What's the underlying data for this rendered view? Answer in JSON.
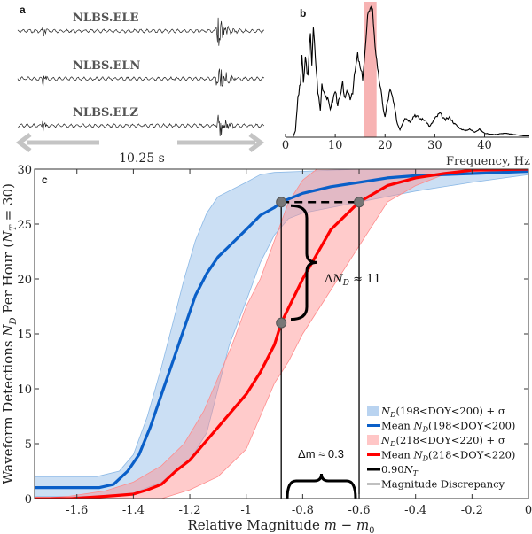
{
  "panel_a": {
    "label": "a",
    "stations": [
      "NLBS.ELE",
      "NLBS.ELN",
      "NLBS.ELZ"
    ],
    "duration_label": "10.25 s"
  },
  "panel_b": {
    "label": "b",
    "xlabel": "Frequency, Hz"
  },
  "panel_c": {
    "label": "c",
    "ylabel_parts": [
      "Waveform Detections ",
      "N",
      "D",
      " Per Hour (",
      "N",
      "T",
      " = 30)"
    ],
    "xlabel_parts": [
      "Relative Magnitude ",
      "m",
      " − ",
      "m",
      "0"
    ],
    "annotation_dn": {
      "delta": "Δ",
      "var": "N",
      "sub": "D",
      "rest": " ≈ 11"
    },
    "annotation_dm": "Δm ≈ 0.3",
    "legend": [
      {
        "type": "patch",
        "color": "#b9d3f0",
        "var": "N",
        "sub": "D",
        "pre": "",
        "rest": "(198<DOY<200) + σ"
      },
      {
        "type": "line",
        "color": "#0a5fc8",
        "var": "N",
        "sub": "D",
        "pre": "Mean ",
        "rest": "(198<DOY<200)"
      },
      {
        "type": "patch",
        "color": "#ffc6c6",
        "var": "N",
        "sub": "D",
        "pre": "",
        "rest": "(218<DOY<220) + σ"
      },
      {
        "type": "line",
        "color": "#ff0000",
        "var": "N",
        "sub": "D",
        "pre": "Mean ",
        "rest": "(218<DOY<220)"
      },
      {
        "type": "line",
        "color": "#000000",
        "var": "N",
        "sub": "T",
        "pre": "0.90",
        "rest": ""
      },
      {
        "type": "thinline",
        "color": "#000000",
        "var": "",
        "sub": "",
        "pre": "Magnitude Discrepancy",
        "rest": ""
      }
    ]
  },
  "chart_data": [
    {
      "type": "line",
      "panel": "b",
      "xlabel": "Frequency, Hz",
      "xlim": [
        0,
        49
      ],
      "xticks": [
        0,
        10,
        20,
        30,
        40
      ],
      "y_units": "relative amplitude (unlabeled)",
      "highlight_band": [
        15.8,
        18.3
      ],
      "highlight_color": "#f7b3b3",
      "x": [
        0,
        1.5,
        2,
        2.5,
        3,
        3.3,
        3.6,
        4,
        4.5,
        5,
        5.3,
        5.6,
        6,
        6.5,
        7,
        7.3,
        7.7,
        8.3,
        9,
        9.5,
        10,
        10.5,
        11,
        11.5,
        12,
        12.5,
        13,
        13.5,
        14,
        14.5,
        15,
        15.5,
        16,
        16.5,
        17,
        17.5,
        18,
        18.5,
        19,
        19.5,
        20,
        20.5,
        21,
        21.5,
        22,
        22.5,
        23,
        24,
        25,
        26,
        27,
        28,
        29,
        30,
        31,
        32,
        33,
        34,
        35,
        36,
        37,
        38,
        39,
        40,
        42,
        44,
        46,
        48,
        49
      ],
      "y": [
        0,
        0,
        0.05,
        0.3,
        0.4,
        0.62,
        0.4,
        0.6,
        0.45,
        0.8,
        0.55,
        0.82,
        0.6,
        0.35,
        0.2,
        0.4,
        0.35,
        0.3,
        0.22,
        0.28,
        0.35,
        0.25,
        0.3,
        0.4,
        0.28,
        0.35,
        0.3,
        0.35,
        0.5,
        0.62,
        0.52,
        0.45,
        0.65,
        0.9,
        0.99,
        0.95,
        0.7,
        0.5,
        0.4,
        0.25,
        0.15,
        0.27,
        0.35,
        0.3,
        0.2,
        0.1,
        0.06,
        0.15,
        0.12,
        0.17,
        0.14,
        0.13,
        0.08,
        0.14,
        0.18,
        0.13,
        0.15,
        0.1,
        0.07,
        0.05,
        0.06,
        0.04,
        0.06,
        0.03,
        0.02,
        0.03,
        0.02,
        0.01,
        0.01
      ]
    },
    {
      "type": "line",
      "panel": "c",
      "xlim": [
        -1.75,
        0
      ],
      "ylim": [
        0,
        30
      ],
      "xticks": [
        -1.6,
        -1.4,
        -1.2,
        -1,
        -0.8,
        -0.6,
        -0.4,
        -0.2,
        0
      ],
      "yticks": [
        0,
        5,
        10,
        15,
        20,
        25,
        30
      ],
      "legend_position": "bottom-right",
      "threshold_NT": 27,
      "discrepancy_m": [
        -0.876,
        -0.6
      ],
      "markers": [
        {
          "m": -0.876,
          "N": 27
        },
        {
          "m": -0.6,
          "N": 27
        },
        {
          "m": -0.876,
          "N": 16
        }
      ],
      "series": [
        {
          "name": "Mean N_D(198<DOY<200)",
          "color": "#0a5fc8",
          "x": [
            -1.75,
            -1.52,
            -1.47,
            -1.42,
            -1.38,
            -1.34,
            -1.3,
            -1.26,
            -1.22,
            -1.18,
            -1.14,
            -1.1,
            -1.04,
            -1,
            -0.95,
            -0.9,
            -0.876,
            -0.8,
            -0.7,
            -0.6,
            -0.5,
            -0.4,
            -0.2,
            0
          ],
          "y": [
            1,
            1,
            1.3,
            2.5,
            4,
            6.5,
            9.5,
            12.5,
            15.5,
            18.5,
            20.5,
            22,
            23.5,
            24.5,
            25.8,
            26.5,
            27,
            27.8,
            28.4,
            28.8,
            29.2,
            29.4,
            29.6,
            29.8
          ]
        },
        {
          "name": "N_D(198<DOY<200) + σ",
          "kind": "band",
          "color": "#8cb9e6",
          "upper": {
            "x": [
              -1.75,
              -1.53,
              -1.45,
              -1.4,
              -1.35,
              -1.3,
              -1.26,
              -1.22,
              -1.18,
              -1.14,
              -1.1,
              -1,
              -0.95,
              -0.9,
              -0.8,
              -0.6,
              0
            ],
            "y": [
              2,
              2,
              2.5,
              4,
              7.5,
              12,
              16,
              20,
              23.5,
              26,
              27.5,
              28.8,
              29.5,
              29.7,
              29.8,
              30,
              30
            ]
          },
          "lower": {
            "x": [
              -1.75,
              -1.45,
              -1.4,
              -1.3,
              -1.2,
              -1.14,
              -1.1,
              -1.06,
              -1,
              -0.95,
              -0.9,
              -0.85,
              -0.8,
              -0.7,
              -0.6,
              -0.5,
              -0.4,
              -0.2,
              0
            ],
            "y": [
              0.2,
              0.2,
              0.5,
              1.5,
              3.5,
              6,
              10,
              14,
              18,
              21.5,
              24,
              25.5,
              26,
              26.5,
              27,
              27.5,
              28,
              28.8,
              29.5
            ]
          }
        },
        {
          "name": "Mean N_D(218<DOY<220)",
          "color": "#ff0000",
          "x": [
            -1.75,
            -1.62,
            -1.5,
            -1.4,
            -1.35,
            -1.3,
            -1.25,
            -1.2,
            -1.15,
            -1.1,
            -1.05,
            -1,
            -0.95,
            -0.9,
            -0.876,
            -0.8,
            -0.7,
            -0.6,
            -0.5,
            -0.4,
            -0.3,
            -0.2,
            0
          ],
          "y": [
            0,
            0,
            0.2,
            0.4,
            0.8,
            1.3,
            2.5,
            3.5,
            5,
            6.5,
            8,
            9.5,
            11.5,
            14,
            16,
            20,
            24.5,
            27,
            28.5,
            29.2,
            29.6,
            29.9,
            30
          ]
        },
        {
          "name": "N_D(218<DOY<220) + σ",
          "kind": "band",
          "color": "#ff8c8c",
          "upper": {
            "x": [
              -1.75,
              -1.63,
              -1.5,
              -1.4,
              -1.3,
              -1.22,
              -1.15,
              -1.1,
              -1.05,
              -1,
              -0.95,
              -0.9,
              -0.85,
              -0.8,
              -0.75,
              0
            ],
            "y": [
              0,
              0.2,
              0.7,
              1.5,
              3,
              5,
              8,
              11,
              14,
              17.5,
              20,
              23.5,
              27,
              29,
              30,
              30
            ]
          },
          "lower": {
            "x": [
              -1.75,
              -1.3,
              -1.2,
              -1.1,
              -1,
              -0.95,
              -0.9,
              -0.85,
              -0.8,
              -0.7,
              -0.6,
              -0.5,
              -0.4,
              -0.3,
              0
            ],
            "y": [
              0,
              0,
              0.8,
              2,
              4.5,
              7.5,
              10.5,
              12.5,
              15,
              19,
              23,
              27,
              28.5,
              29.5,
              30
            ]
          }
        }
      ]
    }
  ]
}
